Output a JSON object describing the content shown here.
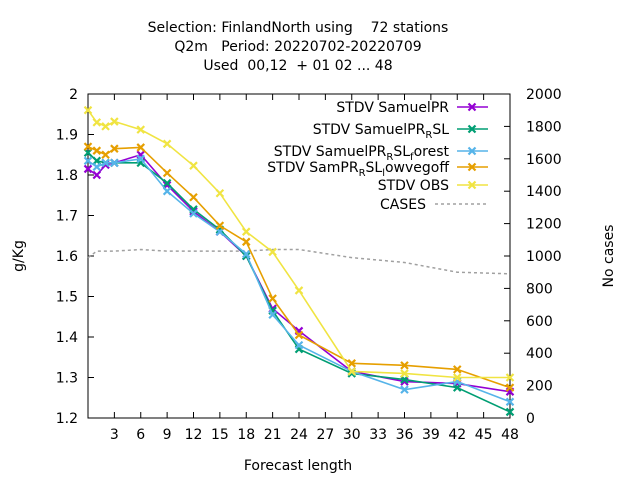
{
  "chart_data": {
    "type": "line",
    "title_lines": [
      "Selection: FinlandNorth using    72 stations",
      "Q2m   Period: 20220702-20220709",
      "Used  00,12  + 01 02 ... 48"
    ],
    "xlabel": "Forecast length",
    "ylabel": "g/Kg",
    "y2label": "No cases",
    "xlim": [
      0,
      48
    ],
    "ylim": [
      1.2,
      2.0
    ],
    "y2lim": [
      0,
      2000
    ],
    "xticks": [
      "3",
      "6",
      "9",
      "12",
      "15",
      "18",
      "21",
      "24",
      "27",
      "30",
      "33",
      "36",
      "39",
      "42",
      "45",
      "48"
    ],
    "yticks": [
      "1.2",
      "1.3",
      "1.4",
      "1.5",
      "1.6",
      "1.7",
      "1.8",
      "1.9",
      "2"
    ],
    "y2ticks": [
      "0",
      "200",
      "400",
      "600",
      "800",
      "1000",
      "1200",
      "1400",
      "1600",
      "1800",
      "2000"
    ],
    "grid": false,
    "legend_position": "top-right",
    "x": [
      0,
      1,
      2,
      3,
      6,
      9,
      12,
      15,
      18,
      21,
      24,
      30,
      36,
      42,
      48
    ],
    "series": [
      {
        "legend": {
          "main": "STDV SamuelPR",
          "parts": []
        },
        "color": "#9400d3",
        "marker": "x",
        "values": [
          1.815,
          1.8,
          1.825,
          1.83,
          1.85,
          1.775,
          1.71,
          1.66,
          1.6,
          1.47,
          1.415,
          1.315,
          1.29,
          1.285,
          1.265
        ]
      },
      {
        "legend": {
          "main": "STDV SamuelPR",
          "parts": [
            [
              "R",
              "sub"
            ],
            [
              "SL",
              ""
            ]
          ]
        },
        "color": "#009e73",
        "marker": "x",
        "values": [
          1.855,
          1.835,
          1.83,
          1.83,
          1.83,
          1.78,
          1.715,
          1.665,
          1.6,
          1.465,
          1.37,
          1.31,
          1.295,
          1.275,
          1.215
        ]
      },
      {
        "legend": {
          "main": "STDV SamuelPR",
          "parts": [
            [
              "R",
              "sub"
            ],
            [
              "SL",
              ""
            ],
            [
              "f",
              "sub"
            ],
            [
              "orest",
              ""
            ]
          ]
        },
        "color": "#56b4e9",
        "marker": "x",
        "values": [
          1.835,
          1.82,
          1.83,
          1.83,
          1.84,
          1.76,
          1.705,
          1.66,
          1.605,
          1.455,
          1.38,
          1.315,
          1.27,
          1.29,
          1.24
        ]
      },
      {
        "legend": {
          "main": "STDV SamPR",
          "parts": [
            [
              "R",
              "sub"
            ],
            [
              "SL",
              ""
            ],
            [
              "l",
              "sub"
            ],
            [
              "owvegoff",
              ""
            ]
          ]
        },
        "color": "#e69f00",
        "marker": "x",
        "values": [
          1.87,
          1.86,
          1.85,
          1.865,
          1.868,
          1.805,
          1.745,
          1.675,
          1.635,
          1.495,
          1.405,
          1.335,
          1.33,
          1.32,
          1.275
        ]
      },
      {
        "legend": {
          "main": "STDV OBS",
          "parts": []
        },
        "color": "#f0e442",
        "marker": "x",
        "values": [
          1.96,
          1.93,
          1.92,
          1.932,
          1.912,
          1.877,
          1.823,
          1.755,
          1.66,
          1.61,
          1.515,
          1.315,
          1.31,
          1.3,
          1.3
        ]
      }
    ],
    "cases": {
      "legend": "CASES",
      "color": "#a0a0a0",
      "dash": "3,3",
      "axis": "y2",
      "x": [
        0,
        1,
        2,
        3,
        6,
        9,
        12,
        15,
        18,
        21,
        24,
        30,
        36,
        42,
        48
      ],
      "values": [
        990,
        1030,
        1030,
        1030,
        1040,
        1030,
        1030,
        1030,
        1030,
        1040,
        1040,
        990,
        960,
        900,
        890
      ]
    }
  }
}
